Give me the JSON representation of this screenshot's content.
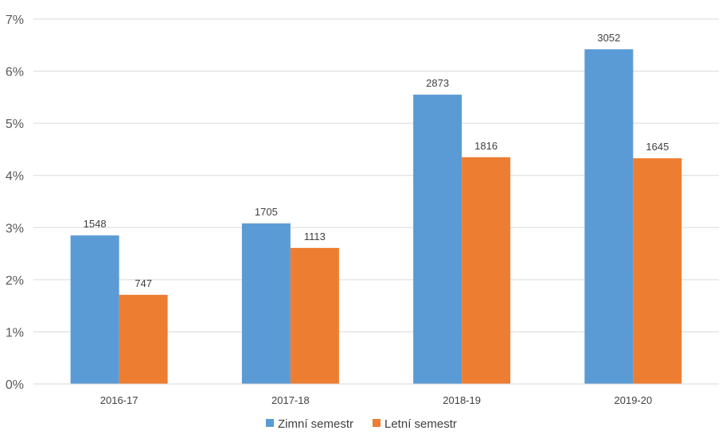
{
  "chart_data": {
    "type": "bar",
    "title": "",
    "xlabel": "",
    "ylabel": "",
    "categories": [
      "2016-17",
      "2017-18",
      "2018-19",
      "2019-20"
    ],
    "series": [
      {
        "name": "Zimní semestr",
        "color": "#5B9BD5",
        "values": [
          2.85,
          3.08,
          5.55,
          6.42
        ],
        "labels": [
          "1548",
          "1705",
          "2873",
          "3052"
        ]
      },
      {
        "name": "Letní semestr",
        "color": "#ED7D31",
        "values": [
          1.71,
          2.61,
          4.35,
          4.33
        ],
        "labels": [
          "747",
          "1113",
          "1816",
          "1645"
        ]
      }
    ],
    "ylim": [
      0,
      7
    ],
    "yticks": [
      0,
      1,
      2,
      3,
      4,
      5,
      6,
      7
    ],
    "ytick_labels": [
      "0%",
      "1%",
      "2%",
      "3%",
      "4%",
      "5%",
      "6%",
      "7%"
    ],
    "grid": true,
    "legend": "bottom",
    "gridline_color": "#D9D9D9"
  }
}
